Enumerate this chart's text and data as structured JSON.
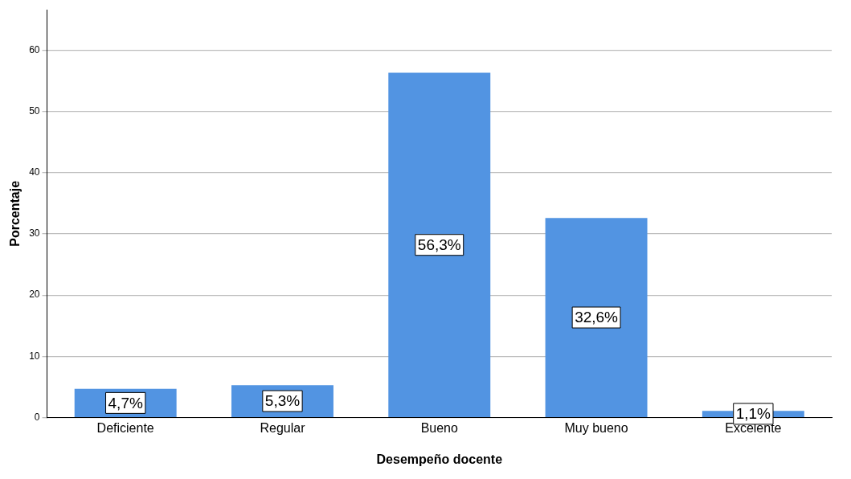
{
  "chart_data": {
    "type": "bar",
    "xlabel": "Desempeño docente",
    "ylabel": "Porcentaje",
    "categories": [
      "Deficiente",
      "Regular",
      "Bueno",
      "Muy bueno",
      "Excelente"
    ],
    "values": [
      4.7,
      5.3,
      56.3,
      32.6,
      1.1
    ],
    "value_labels": [
      "4,7%",
      "5,3%",
      "56,3%",
      "32,6%",
      "1,1%"
    ],
    "color": "#5294e2",
    "ylim": [
      0,
      66.6
    ],
    "yticks": [
      0,
      10,
      20,
      30,
      40,
      50,
      60
    ],
    "grid": "y",
    "legend": false
  }
}
